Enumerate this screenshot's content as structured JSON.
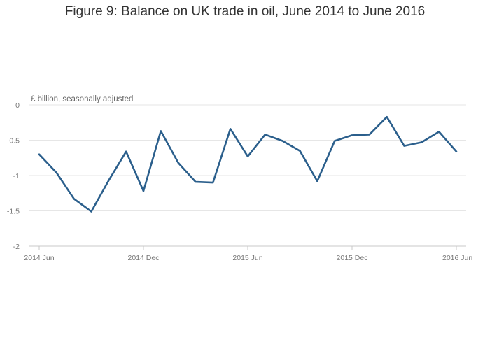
{
  "chart_data": {
    "type": "line",
    "title": "Figure 9: Balance on UK trade in oil, June 2014 to June 2016",
    "ylabel": "£ billion, seasonally adjusted",
    "xlabel": "",
    "ylim": [
      -2,
      0
    ],
    "yticks": [
      "0",
      "-0.5",
      "-1",
      "-1.5",
      "-2"
    ],
    "ytick_values": [
      0,
      -0.5,
      -1,
      -1.5,
      -2
    ],
    "xticks": [
      "2014 Jun",
      "2014 Dec",
      "2015 Jun",
      "2015 Dec",
      "2016 Jun"
    ],
    "xtick_indices": [
      0,
      6,
      12,
      18,
      24
    ],
    "grid": true,
    "line_color": "#2b5f8c",
    "categories": [
      "2014 Jun",
      "2014 Jul",
      "2014 Aug",
      "2014 Sep",
      "2014 Oct",
      "2014 Nov",
      "2014 Dec",
      "2015 Jan",
      "2015 Feb",
      "2015 Mar",
      "2015 Apr",
      "2015 May",
      "2015 Jun",
      "2015 Jul",
      "2015 Aug",
      "2015 Sep",
      "2015 Oct",
      "2015 Nov",
      "2015 Dec",
      "2016 Jan",
      "2016 Feb",
      "2016 Mar",
      "2016 Apr",
      "2016 May",
      "2016 Jun"
    ],
    "values": [
      -0.7,
      -0.96,
      -1.33,
      -1.51,
      -1.07,
      -0.66,
      -1.22,
      -0.37,
      -0.82,
      -1.09,
      -1.1,
      -0.34,
      -0.73,
      -0.42,
      -0.51,
      -0.65,
      -1.08,
      -0.51,
      -0.43,
      -0.42,
      -0.17,
      -0.58,
      -0.53,
      -0.38,
      -0.66
    ]
  }
}
